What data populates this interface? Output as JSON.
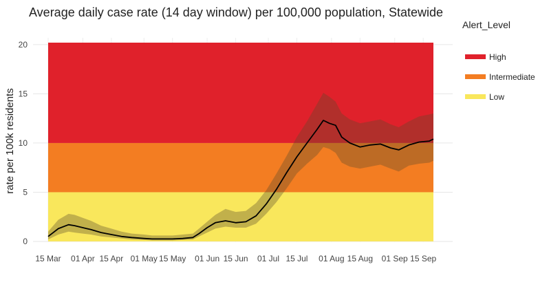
{
  "chart_data": {
    "type": "line",
    "title": "Average daily case rate (14 day window) per 100,000 population, Statewide",
    "xlabel": "",
    "ylabel": "rate per 100k residents",
    "x_tick_labels": [
      "15 Mar",
      "01 Apr",
      "15 Apr",
      "01 May",
      "15 May",
      "01 Jun",
      "15 Jun",
      "01 Jul",
      "15 Jul",
      "01 Aug",
      "15 Aug",
      "01 Sep",
      "15 Sep"
    ],
    "y_ticks": [
      0,
      5,
      10,
      15,
      20
    ],
    "ylim": [
      0,
      20.2
    ],
    "grid": true,
    "legend": {
      "title": "Alert_Level",
      "placement": "right",
      "items": [
        {
          "label": "High",
          "color": "#e0212b"
        },
        {
          "label": "Intermediate",
          "color": "#f37d22"
        },
        {
          "label": "Low",
          "color": "#f9e75c"
        }
      ]
    },
    "alert_bands": [
      {
        "level": "Low",
        "from": 0,
        "to": 5,
        "color": "#f9e75c"
      },
      {
        "level": "Intermediate",
        "from": 5,
        "to": 10,
        "color": "#f37d22"
      },
      {
        "level": "High",
        "from": 10,
        "to": 20.2,
        "color": "#e0212b"
      }
    ],
    "line_color": "#000000",
    "ci_color": "#5a4a2a",
    "x": [
      "2020-03-15",
      "2020-03-20",
      "2020-03-25",
      "2020-03-28",
      "2020-04-01",
      "2020-04-05",
      "2020-04-10",
      "2020-04-15",
      "2020-04-20",
      "2020-04-25",
      "2020-05-01",
      "2020-05-05",
      "2020-05-10",
      "2020-05-15",
      "2020-05-20",
      "2020-05-25",
      "2020-05-28",
      "2020-06-01",
      "2020-06-05",
      "2020-06-10",
      "2020-06-15",
      "2020-06-20",
      "2020-06-25",
      "2020-06-30",
      "2020-07-05",
      "2020-07-10",
      "2020-07-15",
      "2020-07-20",
      "2020-07-25",
      "2020-07-28",
      "2020-07-31",
      "2020-08-03",
      "2020-08-06",
      "2020-08-10",
      "2020-08-15",
      "2020-08-20",
      "2020-08-25",
      "2020-08-30",
      "2020-09-03",
      "2020-09-08",
      "2020-09-13",
      "2020-09-18",
      "2020-09-20"
    ],
    "series": [
      {
        "name": "",
        "values": [
          0.5,
          1.3,
          1.7,
          1.6,
          1.4,
          1.2,
          0.9,
          0.7,
          0.5,
          0.4,
          0.3,
          0.25,
          0.25,
          0.25,
          0.3,
          0.4,
          0.8,
          1.4,
          1.9,
          2.1,
          1.9,
          2.0,
          2.6,
          3.8,
          5.3,
          7.0,
          8.6,
          10.0,
          11.4,
          12.3,
          12.0,
          11.8,
          10.6,
          10.0,
          9.6,
          9.8,
          9.9,
          9.5,
          9.3,
          9.8,
          10.1,
          10.2,
          10.4
        ]
      },
      {
        "name": "",
        "type": "ci_lower",
        "values": [
          0.2,
          0.7,
          1.0,
          0.9,
          0.8,
          0.7,
          0.5,
          0.4,
          0.3,
          0.2,
          0.15,
          0.1,
          0.1,
          0.1,
          0.15,
          0.2,
          0.5,
          0.9,
          1.3,
          1.5,
          1.4,
          1.4,
          1.8,
          2.8,
          4.0,
          5.4,
          6.9,
          7.9,
          8.8,
          9.6,
          9.4,
          9.0,
          8.0,
          7.6,
          7.4,
          7.6,
          7.8,
          7.4,
          7.1,
          7.7,
          7.9,
          8.0,
          8.2
        ]
      },
      {
        "name": "",
        "type": "ci_upper",
        "values": [
          1.0,
          2.2,
          2.8,
          2.7,
          2.4,
          2.1,
          1.6,
          1.3,
          1.0,
          0.8,
          0.7,
          0.6,
          0.6,
          0.6,
          0.7,
          0.8,
          1.3,
          2.0,
          2.7,
          3.3,
          3.0,
          3.1,
          3.9,
          5.2,
          6.9,
          8.7,
          10.6,
          12.2,
          14.0,
          15.1,
          14.7,
          14.2,
          13.0,
          12.4,
          12.0,
          12.2,
          12.4,
          11.9,
          11.6,
          12.2,
          12.7,
          12.9,
          13.0
        ]
      }
    ]
  }
}
